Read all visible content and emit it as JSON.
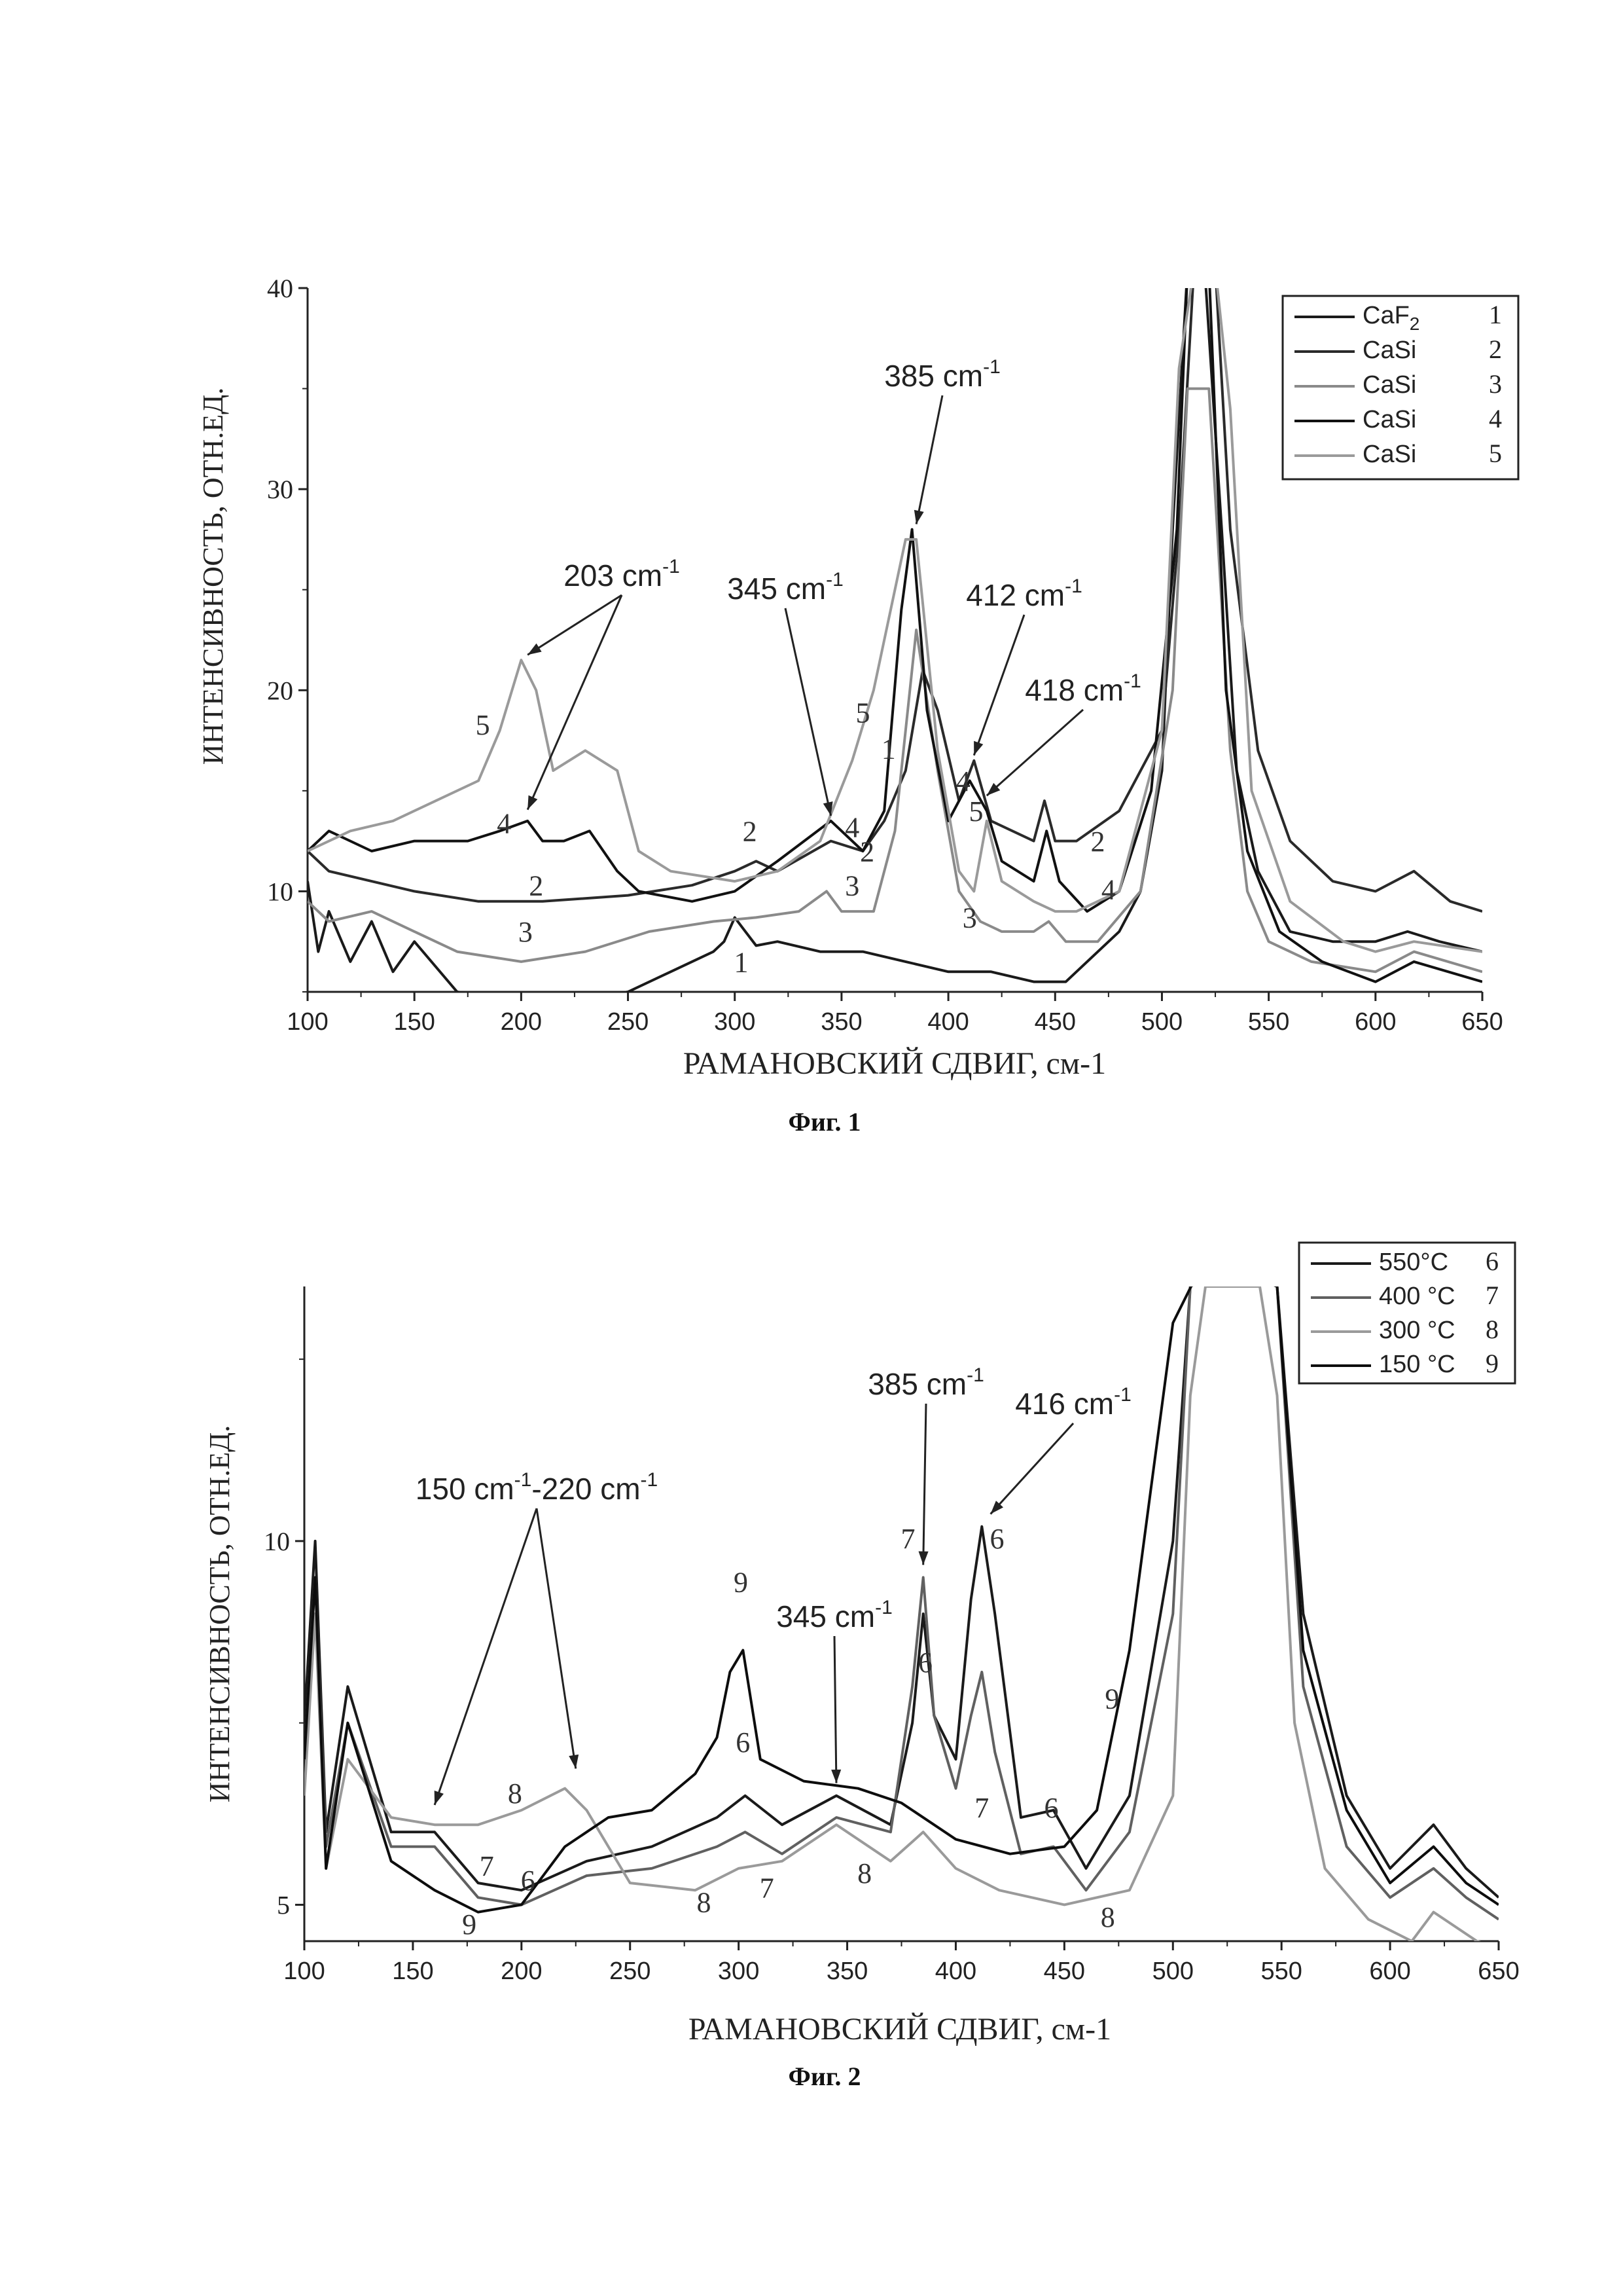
{
  "chart_data": [
    {
      "type": "line",
      "caption": "Фиг. 1",
      "xlabel": "РАМАНОВСКИЙ СДВИГ, см-1",
      "ylabel": "ИНТЕНСИВНОСТЬ, ОТН.ЕД.",
      "xlim": [
        100,
        650
      ],
      "ylim": [
        5,
        40
      ],
      "xticks": [
        100,
        150,
        200,
        250,
        300,
        350,
        400,
        450,
        500,
        550,
        600,
        650
      ],
      "yticks": [
        10,
        20,
        30,
        40
      ],
      "legend_position": "top-right",
      "series": [
        {
          "name": "CaF2",
          "label": "1",
          "color": "#1a1a1a",
          "x": [
            100,
            105,
            110,
            120,
            130,
            140,
            150,
            170,
            200,
            220,
            250,
            270,
            290,
            295,
            300,
            305,
            310,
            320,
            340,
            360,
            380,
            400,
            420,
            440,
            455,
            465,
            480,
            490,
            500,
            505,
            512,
            520,
            528,
            535,
            545,
            560,
            580,
            600,
            615,
            630,
            650
          ],
          "y": [
            10.5,
            7,
            9,
            6.5,
            8.5,
            6,
            7.5,
            5,
            4.5,
            4.5,
            5,
            6,
            7,
            7.5,
            8.7,
            8,
            7.3,
            7.5,
            7,
            7,
            6.5,
            6,
            6,
            5.5,
            5.5,
            6.5,
            8,
            10,
            16,
            28,
            41,
            41,
            28,
            16,
            11,
            8,
            7.5,
            7.5,
            8,
            7.5,
            7
          ]
        },
        {
          "name": "CaSi",
          "label": "2",
          "color": "#2a2a2a",
          "x": [
            100,
            110,
            130,
            150,
            180,
            210,
            250,
            280,
            300,
            310,
            320,
            345,
            360,
            370,
            380,
            388,
            395,
            405,
            412,
            420,
            440,
            445,
            450,
            460,
            480,
            500,
            508,
            515,
            525,
            532,
            545,
            560,
            580,
            600,
            618,
            635,
            650
          ],
          "y": [
            12,
            11,
            10.5,
            10,
            9.5,
            9.5,
            9.8,
            10.3,
            11,
            11.5,
            11,
            12.5,
            12,
            13.5,
            16,
            21,
            19,
            14.5,
            16.5,
            13.5,
            12.5,
            14.5,
            12.5,
            12.5,
            14,
            18,
            28,
            41,
            41,
            28,
            17,
            12.5,
            10.5,
            10,
            11,
            9.5,
            9
          ]
        },
        {
          "name": "CaSi",
          "label": "3",
          "color": "#8a8a8a",
          "x": [
            100,
            110,
            130,
            150,
            170,
            200,
            230,
            260,
            290,
            310,
            330,
            343,
            350,
            365,
            375,
            385,
            395,
            405,
            415,
            425,
            440,
            447,
            455,
            470,
            490,
            505,
            512,
            522,
            532,
            540,
            550,
            570,
            600,
            618,
            650
          ],
          "y": [
            9.5,
            8.5,
            9,
            8,
            7,
            6.5,
            7,
            8,
            8.5,
            8.7,
            9,
            10,
            9,
            9,
            13,
            23,
            16,
            10,
            8.5,
            8,
            8,
            8.5,
            7.5,
            7.5,
            10,
            20,
            35,
            35,
            17,
            10,
            7.5,
            6.5,
            6,
            7,
            6
          ]
        },
        {
          "name": "CaSi",
          "label": "4",
          "color": "#111111",
          "x": [
            100,
            110,
            130,
            150,
            175,
            190,
            203,
            210,
            220,
            232,
            245,
            255,
            280,
            300,
            320,
            345,
            360,
            370,
            378,
            383,
            390,
            400,
            410,
            418,
            425,
            440,
            446,
            452,
            465,
            480,
            495,
            507,
            512,
            522,
            530,
            540,
            555,
            575,
            600,
            618,
            650
          ],
          "y": [
            12,
            13,
            12,
            12.5,
            12.5,
            13,
            13.5,
            12.5,
            12.5,
            13,
            11,
            10,
            9.5,
            10,
            11.5,
            13.5,
            12,
            14,
            24,
            28,
            19,
            13.5,
            15.5,
            14,
            11.5,
            10.5,
            13,
            10.5,
            9,
            10,
            15,
            28,
            41,
            41,
            20,
            12,
            8,
            6.5,
            5.5,
            6.5,
            5.5
          ]
        },
        {
          "name": "CaSi",
          "label": "5",
          "color": "#9a9a9a",
          "x": [
            100,
            120,
            140,
            160,
            180,
            190,
            200,
            207,
            215,
            230,
            245,
            255,
            270,
            300,
            320,
            340,
            355,
            365,
            375,
            380,
            385,
            395,
            405,
            412,
            418,
            425,
            440,
            450,
            460,
            480,
            500,
            508,
            515,
            525,
            532,
            542,
            560,
            585,
            600,
            618,
            650
          ],
          "y": [
            12,
            13,
            13.5,
            14.5,
            15.5,
            18,
            21.5,
            20,
            16,
            17,
            16,
            12,
            11,
            10.5,
            11,
            12.5,
            16.5,
            20,
            25,
            27.5,
            27.5,
            17,
            11,
            10,
            13.5,
            10.5,
            9.5,
            9,
            9,
            10,
            18,
            36,
            41,
            41,
            34,
            15,
            9.5,
            7.5,
            7,
            7.5,
            7
          ]
        }
      ],
      "legend": [
        {
          "text": "CaF",
          "sub": "2",
          "num": "1"
        },
        {
          "text": "CaSi",
          "sub": "",
          "num": "2"
        },
        {
          "text": "CaSi",
          "sub": "",
          "num": "3"
        },
        {
          "text": "CaSi",
          "sub": "",
          "num": "4"
        },
        {
          "text": "CaSi",
          "sub": "",
          "num": "5"
        }
      ],
      "annotations": [
        {
          "text": "385 cm",
          "sup": "-1",
          "ax": 385,
          "ay": 28
        },
        {
          "text": "203 cm",
          "sup": "-1",
          "ax": 203,
          "ay": 21.5
        },
        {
          "text": "345 cm",
          "sup": "-1",
          "ax": 345,
          "ay": 13.5
        },
        {
          "text": "412 cm",
          "sup": "-1",
          "ax": 412,
          "ay": 16.5
        },
        {
          "text": "418 cm",
          "sup": "-1",
          "ax": 418,
          "ay": 14.5
        }
      ],
      "curve_labels": [
        {
          "text": "1",
          "x": 303,
          "y": 6
        },
        {
          "text": "1",
          "x": 372,
          "y": 16.6
        },
        {
          "text": "2",
          "x": 307,
          "y": 12.5
        },
        {
          "text": "2",
          "x": 362,
          "y": 11.5
        },
        {
          "text": "2",
          "x": 470,
          "y": 12
        },
        {
          "text": "2",
          "x": 207,
          "y": 9.8
        },
        {
          "text": "3",
          "x": 202,
          "y": 7.5
        },
        {
          "text": "3",
          "x": 355,
          "y": 9.8
        },
        {
          "text": "3",
          "x": 410,
          "y": 8.2
        },
        {
          "text": "4",
          "x": 192,
          "y": 12.9
        },
        {
          "text": "4",
          "x": 355,
          "y": 12.7
        },
        {
          "text": "4",
          "x": 407,
          "y": 15
        },
        {
          "text": "4",
          "x": 475,
          "y": 9.6
        },
        {
          "text": "5",
          "x": 182,
          "y": 17.8
        },
        {
          "text": "5",
          "x": 360,
          "y": 18.4
        },
        {
          "text": "5",
          "x": 413,
          "y": 13.5
        }
      ]
    },
    {
      "type": "line",
      "caption": "Фиг. 2",
      "xlabel": "РАМАНОВСКИЙ СДВИГ, см-1",
      "ylabel": "ИНТЕНСИВНОСТЬ, ОТН.ЕД.",
      "xlim": [
        100,
        650
      ],
      "ylim": [
        4.5,
        13.5
      ],
      "xticks": [
        100,
        150,
        200,
        250,
        300,
        350,
        400,
        450,
        500,
        550,
        600,
        650
      ],
      "yticks": [
        5,
        10
      ],
      "legend_position": "top-right",
      "series": [
        {
          "name": "550°C",
          "label": "6",
          "color": "#1a1a1a",
          "x": [
            100,
            105,
            110,
            120,
            140,
            160,
            180,
            200,
            230,
            260,
            290,
            303,
            320,
            345,
            370,
            380,
            385,
            390,
            400,
            407,
            412,
            418,
            430,
            445,
            460,
            480,
            500,
            508,
            515,
            540,
            548,
            560,
            580,
            600,
            620,
            635,
            650
          ],
          "y": [
            7.5,
            10,
            6,
            8,
            6,
            6,
            5.3,
            5.2,
            5.6,
            5.8,
            6.2,
            6.5,
            6.1,
            6.5,
            6.1,
            7.5,
            9,
            7.6,
            7,
            9.2,
            10.2,
            9,
            6.2,
            6.3,
            5.5,
            6.5,
            10,
            13.5,
            13.6,
            13.6,
            13.5,
            9,
            6.5,
            5.5,
            6.1,
            5.5,
            5.1
          ]
        },
        {
          "name": "400 °C",
          "label": "7",
          "color": "#606060",
          "x": [
            100,
            105,
            110,
            120,
            140,
            160,
            180,
            200,
            230,
            260,
            290,
            303,
            320,
            345,
            370,
            380,
            385,
            390,
            400,
            407,
            412,
            418,
            430,
            445,
            460,
            480,
            500,
            508,
            515,
            540,
            548,
            560,
            580,
            600,
            620,
            635,
            650
          ],
          "y": [
            7,
            9.5,
            5.8,
            7.5,
            5.8,
            5.8,
            5.1,
            5,
            5.4,
            5.5,
            5.8,
            6,
            5.7,
            6.2,
            6,
            8,
            9.5,
            7.6,
            6.6,
            7.6,
            8.2,
            7.1,
            5.7,
            5.8,
            5.2,
            6,
            9,
            13.5,
            13.6,
            13.6,
            13.5,
            8,
            5.8,
            5.1,
            5.5,
            5.1,
            4.8
          ]
        },
        {
          "name": "300 °C",
          "label": "8",
          "color": "#9a9a9a",
          "x": [
            100,
            105,
            110,
            120,
            140,
            160,
            180,
            200,
            220,
            230,
            250,
            280,
            300,
            320,
            345,
            370,
            385,
            400,
            420,
            450,
            480,
            500,
            508,
            515,
            540,
            548,
            556,
            570,
            590,
            610,
            620,
            640,
            650
          ],
          "y": [
            6.5,
            9,
            5.5,
            7,
            6.2,
            6.1,
            6.1,
            6.3,
            6.6,
            6.3,
            5.3,
            5.2,
            5.5,
            5.6,
            6.1,
            5.6,
            6,
            5.5,
            5.2,
            5,
            5.2,
            6.5,
            12,
            13.5,
            13.5,
            12,
            7.5,
            5.5,
            4.8,
            4.5,
            4.9,
            4.5,
            4.4
          ]
        },
        {
          "name": "150 °C",
          "label": "9",
          "color": "#0d0d0d",
          "x": [
            100,
            105,
            110,
            120,
            140,
            160,
            180,
            200,
            220,
            240,
            260,
            280,
            290,
            296,
            302,
            310,
            330,
            355,
            375,
            400,
            425,
            450,
            465,
            480,
            500,
            510,
            518,
            540,
            548,
            560,
            580,
            600,
            620,
            635,
            650
          ],
          "y": [
            7,
            9.5,
            5.5,
            7.5,
            5.6,
            5.2,
            4.9,
            5,
            5.8,
            6.2,
            6.3,
            6.8,
            7.3,
            8.2,
            8.5,
            7,
            6.7,
            6.6,
            6.4,
            5.9,
            5.7,
            5.8,
            6.3,
            8.5,
            13,
            13.6,
            13.6,
            13.6,
            13.5,
            8.5,
            6.3,
            5.3,
            5.8,
            5.3,
            5
          ]
        }
      ],
      "legend": [
        {
          "text": "550°C",
          "sub": "",
          "num": "6"
        },
        {
          "text": "400 °C",
          "sub": "",
          "num": "7"
        },
        {
          "text": "300 °C",
          "sub": "",
          "num": "8"
        },
        {
          "text": "150 °C",
          "sub": "",
          "num": "9"
        }
      ],
      "annotations": [
        {
          "text": "385 cm",
          "sup": "-1",
          "ax": 385,
          "ay": 9.6
        },
        {
          "text": "416 cm",
          "sup": "-1",
          "ax": 416,
          "ay": 10.3
        },
        {
          "text": "150 cm",
          "sup": "-1",
          "text2": "-220 cm",
          "sup2": "-1",
          "ax": 160,
          "ay": 6.3
        },
        {
          "text": "345 cm",
          "sup": "-1",
          "ax": 345,
          "ay": 6.6
        }
      ],
      "curve_labels": [
        {
          "text": "7",
          "x": 378,
          "y": 9.9
        },
        {
          "text": "6",
          "x": 419,
          "y": 9.9
        },
        {
          "text": "9",
          "x": 301,
          "y": 9.3
        },
        {
          "text": "6",
          "x": 302,
          "y": 7.1
        },
        {
          "text": "6",
          "x": 386,
          "y": 8.2
        },
        {
          "text": "7",
          "x": 412,
          "y": 6.2
        },
        {
          "text": "6",
          "x": 444,
          "y": 6.2
        },
        {
          "text": "9",
          "x": 472,
          "y": 7.7
        },
        {
          "text": "8",
          "x": 197,
          "y": 6.4
        },
        {
          "text": "7",
          "x": 184,
          "y": 5.4
        },
        {
          "text": "6",
          "x": 203,
          "y": 5.2
        },
        {
          "text": "9",
          "x": 176,
          "y": 4.6
        },
        {
          "text": "8",
          "x": 284,
          "y": 4.9
        },
        {
          "text": "7",
          "x": 313,
          "y": 5.1
        },
        {
          "text": "8",
          "x": 358,
          "y": 5.3
        },
        {
          "text": "8",
          "x": 470,
          "y": 4.7
        }
      ]
    }
  ]
}
